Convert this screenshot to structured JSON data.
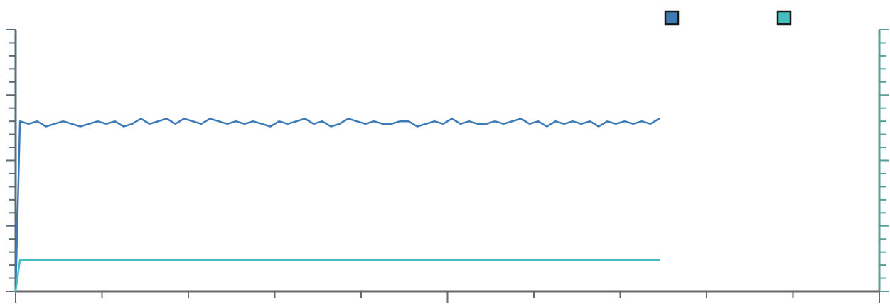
{
  "chart_data": {
    "type": "line",
    "title": "",
    "xlabel": "",
    "ylabel": "",
    "y2label": "",
    "xlim": [
      0,
      100
    ],
    "ylim": [
      0,
      100
    ],
    "y2lim": [
      0,
      100
    ],
    "grid": false,
    "legend": "top-right",
    "colors": {
      "axis_left": "#5a6b75",
      "axis_right": "#5a9e9a",
      "axis_bottom": "#6a6a6a"
    },
    "series": [
      {
        "name": "",
        "axis": "left",
        "color": "#3d7ab8",
        "x": [
          0,
          0.5,
          1.5,
          2.5,
          3.5,
          4.5,
          5.5,
          6.5,
          7.5,
          8.5,
          9.5,
          10.5,
          11.5,
          12.5,
          13.5,
          14.5,
          15.5,
          16.5,
          17.5,
          18.5,
          19.5,
          20.5,
          21.5,
          22.5,
          23.5,
          24.5,
          25.5,
          26.5,
          27.5,
          28.5,
          29.5,
          30.5,
          31.5,
          32.5,
          33.5,
          34.5,
          35.5,
          36.5,
          37.5,
          38.5,
          39.5,
          40.5,
          41.5,
          42.5,
          43.5,
          44.5,
          45.5,
          46.5,
          47.5,
          48.5,
          49.5,
          50.5,
          51.5,
          52.5,
          53.5,
          54.5,
          55.5,
          56.5,
          57.5,
          58.5,
          59.5,
          60.5,
          61.5,
          62.5,
          63.5,
          64.5,
          65.5,
          66.5,
          67.5,
          68.5,
          69.5,
          70.5,
          71.5,
          72.5,
          73.5,
          74.5
        ],
        "values": [
          0,
          65,
          64,
          65,
          63,
          64,
          65,
          64,
          63,
          64,
          65,
          64,
          65,
          63,
          64,
          66,
          64,
          65,
          66,
          64,
          66,
          65,
          64,
          66,
          65,
          64,
          65,
          64,
          65,
          64,
          63,
          65,
          64,
          65,
          66,
          64,
          65,
          63,
          64,
          66,
          65,
          64,
          65,
          64,
          64,
          65,
          65,
          63,
          64,
          65,
          64,
          66,
          64,
          65,
          64,
          64,
          65,
          64,
          65,
          66,
          64,
          65,
          63,
          65,
          64,
          65,
          64,
          65,
          63,
          65,
          64,
          65,
          64,
          65,
          64,
          66
        ]
      },
      {
        "name": "",
        "axis": "right",
        "color": "#47bdc0",
        "x": [
          0,
          0.5,
          74.5
        ],
        "values": [
          0,
          12,
          12
        ]
      }
    ]
  }
}
